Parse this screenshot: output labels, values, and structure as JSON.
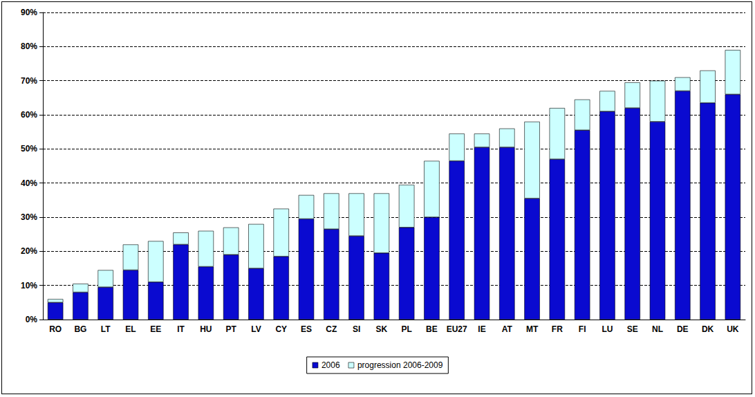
{
  "chart_data": {
    "type": "bar",
    "stacked": true,
    "grid": true,
    "legend": "bottom",
    "categories": [
      "RO",
      "BG",
      "LT",
      "EL",
      "EE",
      "IT",
      "HU",
      "PT",
      "LV",
      "CY",
      "ES",
      "CZ",
      "SI",
      "SK",
      "PL",
      "BE",
      "EU27",
      "IE",
      "AT",
      "MT",
      "FR",
      "FI",
      "LU",
      "SE",
      "NL",
      "DE",
      "DK",
      "UK"
    ],
    "series": [
      {
        "name": "2006",
        "color": "#0a0ad0",
        "values": [
          5,
          8,
          9.5,
          14.5,
          11,
          22,
          15.5,
          19,
          15,
          18.5,
          29.5,
          26.5,
          24.5,
          19.5,
          27,
          30,
          46.5,
          50.5,
          50.5,
          35.5,
          47,
          55.5,
          61,
          62,
          58,
          67,
          63.5,
          66
        ]
      },
      {
        "name": "progression 2006-2009",
        "color": "#ccffff",
        "values": [
          1,
          2.5,
          5,
          7.5,
          12,
          3.5,
          10.5,
          8,
          13,
          14,
          7,
          10.5,
          12.5,
          17.5,
          12.5,
          16.5,
          8,
          4,
          5.5,
          22.5,
          15,
          9,
          6,
          7.5,
          12,
          4,
          9.5,
          13
        ]
      }
    ],
    "ylim": [
      0,
      90
    ],
    "yticks": [
      {
        "value": 0,
        "label": "0%"
      },
      {
        "value": 10,
        "label": "10%"
      },
      {
        "value": 20,
        "label": "20%"
      },
      {
        "value": 30,
        "label": "30%"
      },
      {
        "value": 40,
        "label": "40%"
      },
      {
        "value": 50,
        "label": "50%"
      },
      {
        "value": 60,
        "label": "60%"
      },
      {
        "value": 70,
        "label": "70%"
      },
      {
        "value": 80,
        "label": "80%"
      },
      {
        "value": 90,
        "label": "90%"
      }
    ]
  }
}
